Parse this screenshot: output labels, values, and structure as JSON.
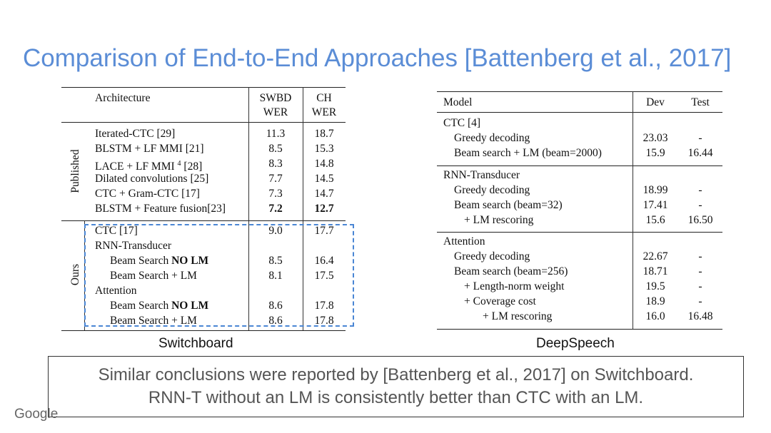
{
  "title": "Comparison of End-to-End Approaches [Battenberg et al., 2017]",
  "switchboard": {
    "caption": "Switchboard",
    "headers": {
      "arch": "Architecture",
      "swbd1": "SWBD",
      "swbd2": "WER",
      "ch1": "CH",
      "ch2": "WER"
    },
    "published_label": "Published",
    "ours_label": "Ours",
    "published": [
      {
        "name": "Iterated-CTC [29]",
        "swbd": "11.3",
        "ch": "18.7"
      },
      {
        "name": "BLSTM + LF MMI [21]",
        "swbd": "8.5",
        "ch": "15.3"
      },
      {
        "name": "LACE + LF MMI",
        "sup": "4",
        "ref": " [28]",
        "swbd": "8.3",
        "ch": "14.8"
      },
      {
        "name": "Dilated convolutions [25]",
        "swbd": "7.7",
        "ch": "14.5"
      },
      {
        "name": "CTC + Gram-CTC [17]",
        "swbd": "7.3",
        "ch": "14.7"
      },
      {
        "name": "BLSTM + Feature fusion[23]",
        "swbd": "7.2",
        "ch": "12.7"
      }
    ],
    "ours": [
      {
        "name": "CTC [17]",
        "swbd": "9.0",
        "ch": "17.7"
      },
      {
        "name": "RNN-Transducer",
        "swbd": "",
        "ch": ""
      },
      {
        "name_prefix": "Beam Search ",
        "name_bold": "NO LM",
        "swbd": "8.5",
        "ch": "16.4"
      },
      {
        "name": "Beam Search + LM",
        "swbd": "8.1",
        "ch": "17.5"
      },
      {
        "name": "Attention",
        "swbd": "",
        "ch": ""
      },
      {
        "name_prefix": "Beam Search ",
        "name_bold": "NO LM",
        "swbd": "8.6",
        "ch": "17.8"
      },
      {
        "name": "Beam Search + LM",
        "swbd": "8.6",
        "ch": "17.8"
      }
    ]
  },
  "deepspeech": {
    "caption": "DeepSpeech",
    "headers": {
      "model": "Model",
      "dev": "Dev",
      "test": "Test"
    },
    "groups": [
      {
        "title": "CTC [4]",
        "rows": [
          {
            "name": "Greedy decoding",
            "dev": "23.03",
            "test": "-"
          },
          {
            "name": "Beam search + LM (beam=2000)",
            "dev": "15.9",
            "test": "16.44"
          }
        ]
      },
      {
        "title": "RNN-Transducer",
        "rows": [
          {
            "name": "Greedy decoding",
            "dev": "18.99",
            "test": "-"
          },
          {
            "name": "Beam search (beam=32)",
            "dev": "17.41",
            "test": "-"
          },
          {
            "name": "+ LM rescoring",
            "dev": "15.6",
            "test": "16.50"
          }
        ]
      },
      {
        "title": "Attention",
        "rows": [
          {
            "name": "Greedy decoding",
            "dev": "22.67",
            "test": "-"
          },
          {
            "name": "Beam search (beam=256)",
            "dev": "18.71",
            "test": "-"
          },
          {
            "name": "+ Length-norm weight",
            "dev": "19.5",
            "test": "-"
          },
          {
            "name": "+ Coverage cost",
            "dev": "18.9",
            "test": "-"
          },
          {
            "name": "+ LM rescoring",
            "dev": "16.0",
            "test": "16.48"
          }
        ]
      }
    ]
  },
  "note": {
    "line1": "Similar conclusions were reported by [Battenberg et al., 2017] on Switchboard.",
    "line2": "RNN-T without an LM is consistently better than CTC with an LM."
  },
  "logo": "Google"
}
